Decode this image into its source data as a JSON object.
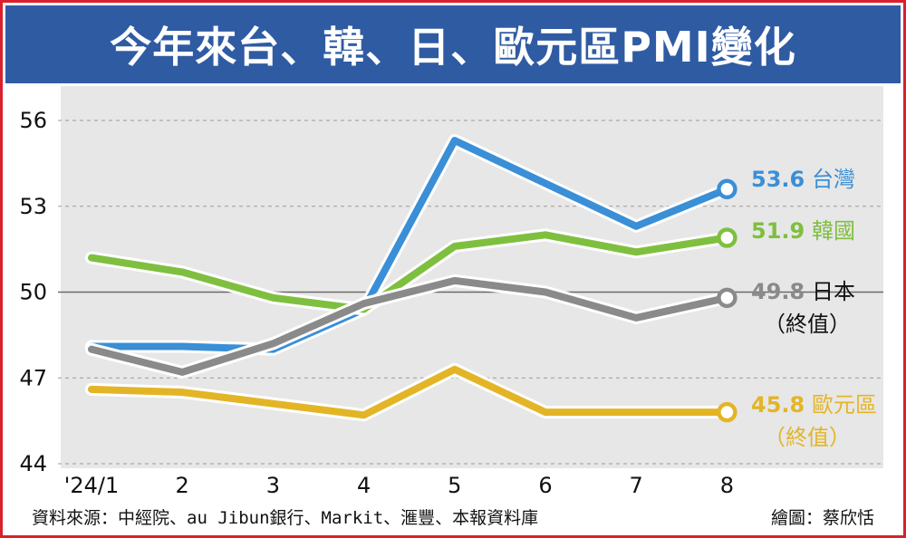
{
  "header": {
    "title": "今年來台、韓、日、歐元區PMI變化"
  },
  "chart_data": {
    "type": "line",
    "title": "今年來台、韓、日、歐元區PMI變化",
    "categories": [
      "'24/1",
      "2",
      "3",
      "4",
      "5",
      "6",
      "7",
      "8"
    ],
    "ylim": [
      44,
      56
    ],
    "yticks": [
      44,
      47,
      50,
      53,
      56
    ],
    "grid": true,
    "series": [
      {
        "name": "台灣",
        "color": "#3a8fd6",
        "values": [
          48.1,
          48.1,
          48.0,
          49.4,
          55.3,
          53.8,
          52.3,
          53.6
        ],
        "end_label": {
          "value": "53.6",
          "name": "台灣",
          "sub": ""
        }
      },
      {
        "name": "韓國",
        "color": "#7fbf3f",
        "values": [
          51.2,
          50.7,
          49.8,
          49.4,
          51.6,
          52.0,
          51.4,
          51.9
        ],
        "end_label": {
          "value": "51.9",
          "name": "韓國",
          "sub": ""
        }
      },
      {
        "name": "日本",
        "color": "#8a8a8a",
        "values": [
          48.0,
          47.2,
          48.2,
          49.6,
          50.4,
          50.0,
          49.1,
          49.8
        ],
        "end_label": {
          "value": "49.8",
          "name": "日本",
          "sub": "（終值）"
        }
      },
      {
        "name": "歐元區",
        "color": "#e3b526",
        "values": [
          46.6,
          46.5,
          46.1,
          45.7,
          47.3,
          45.8,
          45.8,
          45.8
        ],
        "end_label": {
          "value": "45.8",
          "name": "歐元區",
          "sub": "（終值）"
        }
      }
    ]
  },
  "footer": {
    "source": "資料來源：中經院、au Jibun銀行、Markit、滙豐、本報資料庫",
    "credit": "繪圖：蔡欣恬"
  }
}
